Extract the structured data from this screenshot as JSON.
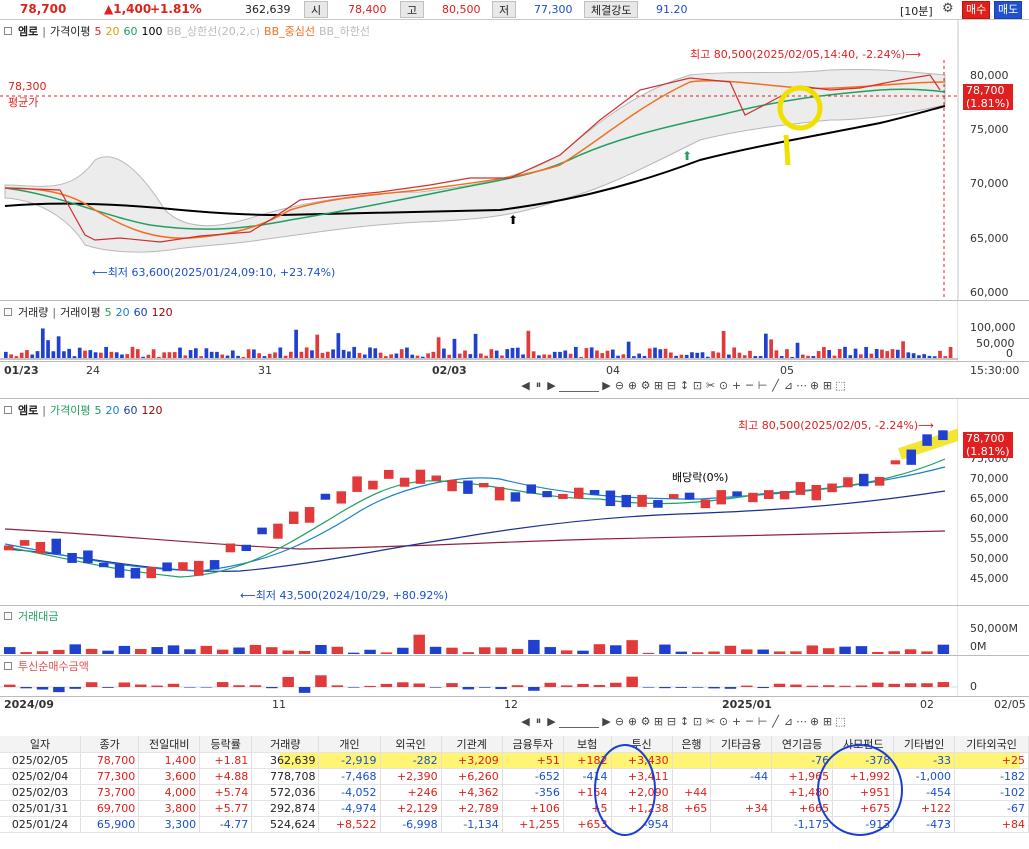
{
  "quote": {
    "price": "78,700",
    "change": "▲1,400",
    "rate": "+1.81%",
    "volume": "362,639",
    "open_label": "시",
    "open": "78,400",
    "high_label": "고",
    "high": "80,500",
    "low_label": "저",
    "low": "77,300",
    "strength_label": "체결강도",
    "strength": "91.20",
    "interval": "[10분]",
    "buy": "매수",
    "sell": "매도"
  },
  "chart1": {
    "legend": {
      "title": "엠로",
      "ma_label": "가격이평",
      "ma5": "5",
      "ma20": "20",
      "ma60": "60",
      "ma100": "100",
      "bb_upper": "BB_상한선(20,2,c)",
      "bb_mid": "BB_중심선",
      "bb_lower": "BB_하한선"
    },
    "avg_price": "78,300",
    "avg_label": "평균가",
    "high_note": "최고 80,500(2025/02/05,14:40, -2.24%)⟶",
    "low_note": "⟵최저 63,600(2025/01/24,09:10, +23.74%)",
    "y_ticks": [
      "80,000",
      "75,000",
      "70,000",
      "65,000",
      "60,000"
    ],
    "last_price": "78,700",
    "last_rate": "(1.81%)",
    "colors": {
      "ma5": "#e02020",
      "ma20": "#f07020",
      "ma60": "#20a060",
      "ma100": "#000000"
    }
  },
  "vol1": {
    "legend": {
      "title": "거래량",
      "ma_label": "거래이평",
      "ma5": "5",
      "ma20": "20",
      "ma60": "60",
      "ma120": "120"
    },
    "y_ticks": [
      "100,000",
      "50,000",
      "0"
    ],
    "x_ticks": [
      "01/23",
      "24",
      "31",
      "02/03",
      "04",
      "05"
    ],
    "time": "15:30:00"
  },
  "chart2": {
    "legend": {
      "title": "엠로",
      "ma_label": "가격이평",
      "ma5": "5",
      "ma20": "20",
      "ma60": "60",
      "ma120": "120"
    },
    "high_note": "최고 80,500(2025/02/05, -2.24%)⟶",
    "low_note": "⟵최저 43,500(2024/10/29, +80.92%)",
    "div_note": "배당락(0%)",
    "y_ticks": [
      "75,000",
      "70,000",
      "65,000",
      "60,000",
      "55,000",
      "50,000",
      "45,000"
    ],
    "last_price": "78,700",
    "last_rate": "(1.81%)"
  },
  "amount": {
    "title": "거래대금",
    "y_ticks": [
      "50,000M",
      "0M"
    ]
  },
  "inst": {
    "title": "투신순매수금액",
    "y_ticks": [
      "0"
    ],
    "x_ticks": [
      "2024/09",
      "11",
      "12",
      "2025/01",
      "02"
    ],
    "right_date": "02/05"
  },
  "table": {
    "headers": [
      "일자",
      "종가",
      "전일대비",
      "등락률",
      "거래량",
      "개인",
      "외국인",
      "기관계",
      "금융투자",
      "보험",
      "투신",
      "은행",
      "기타금융",
      "연기금등",
      "사모펀드",
      "기타법인",
      "기타외국인"
    ],
    "rows": [
      [
        "025/02/05",
        "78,700",
        "1,400",
        "+1.81",
        "362,639",
        "-2,919",
        "-282",
        "+3,209",
        "+51",
        "+182",
        "+3,430",
        "",
        "",
        "-76",
        "-378",
        "-33",
        "+25"
      ],
      [
        "025/02/04",
        "77,300",
        "3,600",
        "+4.88",
        "778,708",
        "-7,468",
        "+2,390",
        "+6,260",
        "-652",
        "-414",
        "+3,411",
        "",
        "-44",
        "+1,965",
        "+1,992",
        "-1,000",
        "-182"
      ],
      [
        "025/02/03",
        "73,700",
        "4,000",
        "+5.74",
        "572,036",
        "-4,052",
        "+246",
        "+4,362",
        "-356",
        "+154",
        "+2,090",
        "+44",
        "",
        "+1,480",
        "+951",
        "-454",
        "-102"
      ],
      [
        "025/01/31",
        "69,700",
        "3,800",
        "+5.77",
        "292,874",
        "-4,974",
        "+2,129",
        "+2,789",
        "+106",
        "+5",
        "+1,238",
        "+65",
        "+34",
        "+665",
        "+675",
        "+122",
        "-67"
      ],
      [
        "025/01/24",
        "65,900",
        "3,300",
        "-4.77",
        "524,624",
        "+8,522",
        "-6,998",
        "-1,134",
        "+1,255",
        "+653",
        "-954",
        "",
        "",
        "-1,175",
        "-913",
        "-473",
        "+84"
      ]
    ]
  }
}
